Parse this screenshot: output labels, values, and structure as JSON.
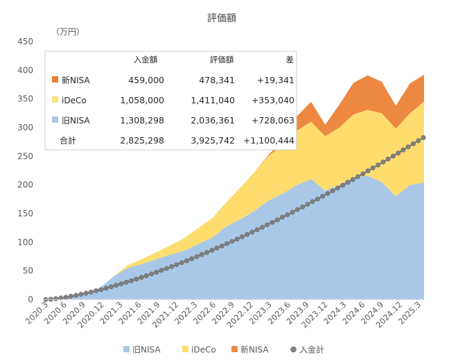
{
  "chart_data": {
    "type": "area",
    "title": "評価額",
    "ylabel": "（万円）",
    "ylim": [
      0,
      450
    ],
    "yticks": [
      "0",
      "50",
      "100",
      "150",
      "200",
      "250",
      "300",
      "350",
      "400",
      "450"
    ],
    "xticks": [
      "2020.3",
      "2020.6",
      "2020.9",
      "2020.12",
      "2021.3",
      "2021.6",
      "2021.9",
      "2021.12",
      "2022.3",
      "2022.6",
      "2022.9",
      "2022.12",
      "2023.3",
      "2023.6",
      "2023.9",
      "2023.12",
      "2024.3",
      "2024.6",
      "2024.9",
      "2024.12",
      "2025.3"
    ],
    "x": [
      "2020.3",
      "2020.6",
      "2020.9",
      "2020.12",
      "2021.3",
      "2021.6",
      "2021.9",
      "2021.12",
      "2022.3",
      "2022.6",
      "2022.9",
      "2022.12",
      "2023.3",
      "2023.6",
      "2023.9",
      "2023.12",
      "2024.1",
      "2024.3",
      "2024.6",
      "2024.7",
      "2024.8",
      "2024.9",
      "2024.12",
      "2025.1",
      "2025.3",
      "2025.4",
      "2025.5",
      "2025.6"
    ],
    "series": [
      {
        "name": "旧NISA",
        "color": "#a9c8e7",
        "values": [
          0,
          2,
          5,
          9,
          20,
          40,
          55,
          62,
          70,
          78,
          85,
          97,
          108,
          128,
          140,
          155,
          173,
          185,
          200,
          210,
          190,
          200,
          213,
          216,
          205,
          180,
          200,
          204
        ]
      },
      {
        "name": "iDeCo",
        "color": "#fedd6e",
        "values": [
          0,
          0,
          0,
          0,
          0,
          0,
          5,
          8,
          12,
          16,
          22,
          28,
          34,
          42,
          56,
          68,
          78,
          85,
          95,
          100,
          95,
          100,
          110,
          115,
          120,
          118,
          125,
          141
        ]
      },
      {
        "name": "新NISA",
        "color": "#ed8842",
        "values": [
          0,
          0,
          0,
          0,
          0,
          0,
          0,
          0,
          0,
          0,
          0,
          0,
          0,
          0,
          0,
          0,
          2,
          8,
          25,
          35,
          20,
          40,
          55,
          60,
          55,
          40,
          52,
          47
        ]
      }
    ],
    "line_series": {
      "name": "入金計",
      "color": "#808080",
      "points": 76,
      "start": 0,
      "end": 282.5
    },
    "legend": [
      "旧NISA",
      "iDeCo",
      "新NISA",
      "入金計"
    ],
    "legend_position": "bottom",
    "grid": false,
    "table": {
      "headers": [
        "",
        "入金額",
        "評価額",
        "差"
      ],
      "rows": [
        {
          "label": "新NISA",
          "color": "#ed7d31",
          "deposit": "459,000",
          "value": "478,341",
          "diff": "+19,341"
        },
        {
          "label": "iDeCo",
          "color": "#ffe082",
          "deposit": "1,058,000",
          "value": "1,411,040",
          "diff": "+353,040"
        },
        {
          "label": "旧NISA",
          "color": "#a9c8e7",
          "deposit": "1,308,298",
          "value": "2,036,361",
          "diff": "+728,063"
        },
        {
          "label": "合計",
          "color": "",
          "deposit": "2,825,298",
          "value": "3,925,742",
          "diff": "+1,100,444"
        }
      ]
    }
  }
}
